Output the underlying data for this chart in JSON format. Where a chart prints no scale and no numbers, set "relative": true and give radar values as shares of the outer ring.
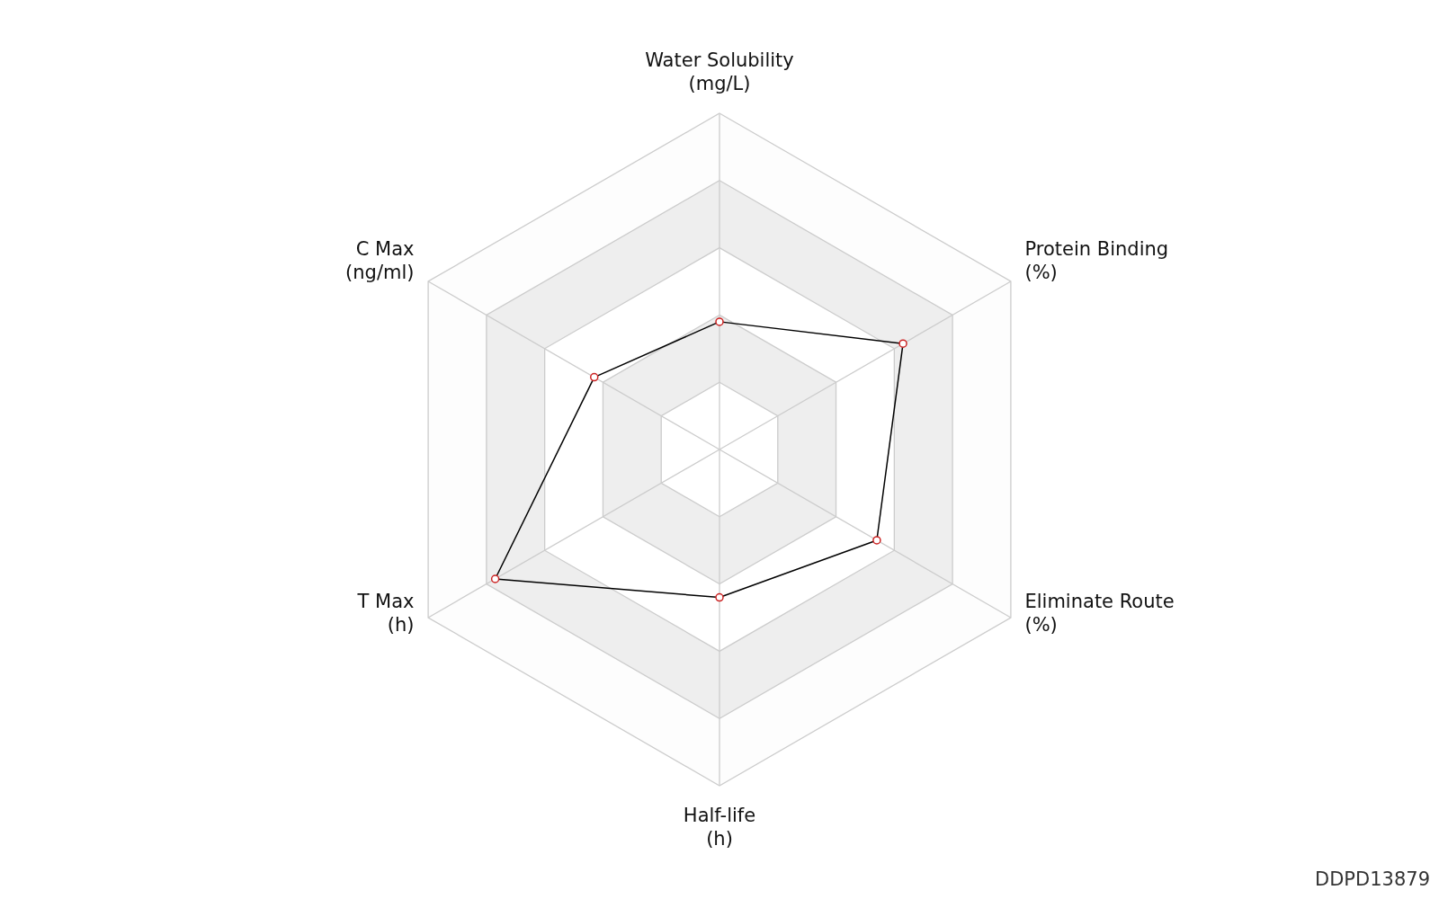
{
  "chart_data": {
    "type": "radar",
    "relative": true,
    "categories": [
      "Water Solubility\n(mg/L)",
      "Protein Binding\n(%)",
      "Eliminate Route\n(%)",
      "Half-life\n(h)",
      "T Max\n(h)",
      "C Max\n(ng/ml)"
    ],
    "marker": "circle",
    "series": [
      {
        "color": "#000000",
        "values": [
          0.38,
          0.63,
          0.54,
          0.44,
          0.77,
          0.43
        ]
      }
    ],
    "annotations": [
      "DDPD13879"
    ]
  }
}
